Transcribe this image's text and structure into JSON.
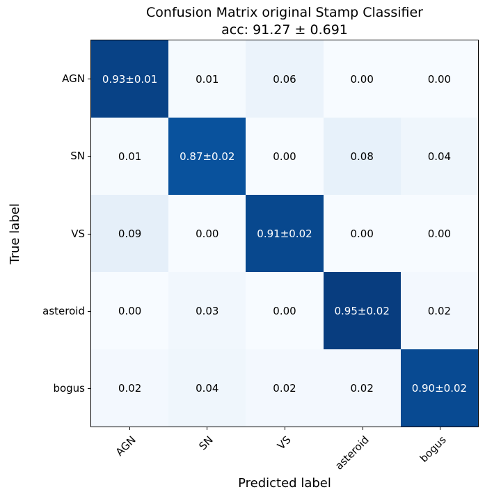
{
  "title": "Confusion Matrix original Stamp Classifier",
  "subtitle": "acc: 91.27 ± 0.691",
  "x_axis_label": "Predicted label",
  "y_axis_label": "True label",
  "chart_data": {
    "type": "heatmap",
    "title": "Confusion Matrix original Stamp Classifier",
    "subtitle": "acc: 91.27 ± 0.691",
    "xlabel": "Predicted label",
    "ylabel": "True label",
    "x_categories": [
      "AGN",
      "SN",
      "VS",
      "asteroid",
      "bogus"
    ],
    "y_categories": [
      "AGN",
      "SN",
      "VS",
      "asteroid",
      "bogus"
    ],
    "values": [
      [
        0.93,
        0.01,
        0.06,
        0.0,
        0.0
      ],
      [
        0.01,
        0.87,
        0.0,
        0.08,
        0.04
      ],
      [
        0.09,
        0.0,
        0.91,
        0.0,
        0.0
      ],
      [
        0.0,
        0.03,
        0.0,
        0.95,
        0.02
      ],
      [
        0.02,
        0.04,
        0.02,
        0.02,
        0.9
      ]
    ],
    "cell_labels": [
      [
        "0.93±0.01",
        "0.01",
        "0.06",
        "0.00",
        "0.00"
      ],
      [
        "0.01",
        "0.87±0.02",
        "0.00",
        "0.08",
        "0.04"
      ],
      [
        "0.09",
        "0.00",
        "0.91±0.02",
        "0.00",
        "0.00"
      ],
      [
        "0.00",
        "0.03",
        "0.00",
        "0.95±0.02",
        "0.02"
      ],
      [
        "0.02",
        "0.04",
        "0.02",
        "0.02",
        "0.90±0.02"
      ]
    ],
    "colormap": {
      "name": "Blues",
      "vmin": 0,
      "vmax": 1,
      "stops": [
        "#f7fbff",
        "#deebf7",
        "#c6dbef",
        "#9ecae1",
        "#6baed6",
        "#4292c6",
        "#2171b5",
        "#08519c",
        "#08306b"
      ]
    },
    "grid": false,
    "legend": "none",
    "text_color_low": "#000000",
    "text_color_high": "#ffffff",
    "text_color_threshold": 0.5,
    "spine_color": "#000000"
  }
}
